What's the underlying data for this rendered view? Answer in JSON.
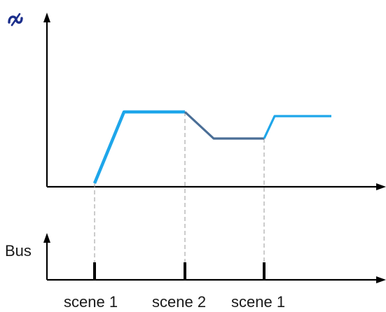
{
  "bus_axis": {
    "label": "Bus"
  },
  "curve": {
    "colors": {
      "light": "#1ea6ea",
      "dark": "#4a6e96",
      "icon": "#1c2f8c"
    }
  },
  "scenes": [
    {
      "label": "scene 1"
    },
    {
      "label": "scene 2"
    },
    {
      "label": "scene 1"
    }
  ],
  "icons": {
    "top_axis_icon": "dimming-symbol-icon"
  }
}
